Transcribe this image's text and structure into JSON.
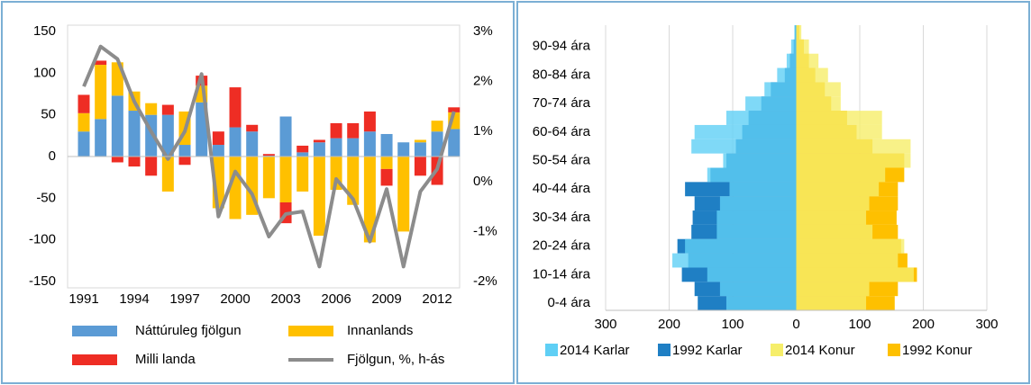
{
  "chart_data": [
    {
      "type": "bar",
      "categories": [
        "1991",
        null,
        null,
        "1994",
        null,
        null,
        "1997",
        null,
        null,
        "2000",
        null,
        null,
        "2003",
        null,
        null,
        "2006",
        null,
        null,
        "2009",
        null,
        null,
        "2012",
        null
      ],
      "series": [
        {
          "name": "Náttúruleg fjölgun",
          "color": "#5b9bd5",
          "type": "bar",
          "values": [
            30,
            45,
            73,
            55,
            50,
            50,
            14,
            65,
            14,
            35,
            30,
            1,
            48,
            5,
            17,
            22,
            22,
            30,
            27,
            17,
            17,
            30,
            33
          ]
        },
        {
          "name": "Innanlands",
          "color": "#ffc000",
          "type": "bar",
          "values": [
            22,
            65,
            40,
            23,
            14,
            -42,
            40,
            20,
            -62,
            -75,
            -70,
            -50,
            -55,
            -42,
            -95,
            -40,
            -58,
            -103,
            -15,
            -90,
            3,
            13,
            20
          ]
        },
        {
          "name": "Milli landa",
          "color": "#ee2d24",
          "type": "bar",
          "values": [
            22,
            5,
            -7,
            -12,
            -23,
            12,
            -10,
            12,
            16,
            48,
            8,
            2,
            -25,
            8,
            3,
            18,
            18,
            24,
            -20,
            0,
            -23,
            -34,
            6
          ]
        },
        {
          "name": "Fjölgun, %, h-ás",
          "color": "#8c8c8c",
          "type": "line",
          "axis": "y2",
          "values": [
            1.9,
            2.7,
            2.45,
            1.6,
            1.0,
            0.45,
            1.0,
            2.15,
            -0.7,
            0.2,
            -0.25,
            -1.1,
            -0.65,
            -0.6,
            -1.7,
            0.05,
            -0.35,
            -1.2,
            -0.15,
            -1.7,
            -0.2,
            0.25,
            1.4
          ]
        }
      ],
      "ylim": [
        -150,
        150
      ],
      "yticks": [
        -150,
        -100,
        -50,
        0,
        50,
        100,
        150
      ],
      "y2lim": [
        -2,
        3
      ],
      "y2ticks": [
        {
          "value": -2,
          "label": "-2%"
        },
        {
          "value": -1,
          "label": "-1%"
        },
        {
          "value": 0,
          "label": "0%"
        },
        {
          "value": 1,
          "label": "1%"
        },
        {
          "value": 2,
          "label": "2%"
        },
        {
          "value": 3,
          "label": "3%"
        }
      ],
      "grid": false
    },
    {
      "type": "barh",
      "categories": [
        "0-4 ára",
        null,
        "10-14 ára",
        null,
        "20-24 ára",
        null,
        "30-34 ára",
        null,
        "40-44 ára",
        null,
        "50-54 ára",
        null,
        "60-64 ára",
        null,
        "70-74 ára",
        null,
        "80-84 ára",
        null,
        "90-94 ára",
        null
      ],
      "series": [
        {
          "name": "2014 Karlar",
          "color": "#5fcff5",
          "values": [
            -110,
            -120,
            -140,
            -195,
            -175,
            -125,
            -125,
            -120,
            -105,
            -140,
            -115,
            -165,
            -160,
            -110,
            -80,
            -50,
            -30,
            -15,
            -8,
            -3
          ]
        },
        {
          "name": "1992 Karlar",
          "color": "#1f7fc4",
          "values": [
            -155,
            -160,
            -180,
            -170,
            -187,
            -165,
            -163,
            -160,
            -175,
            -135,
            -110,
            -95,
            -85,
            -75,
            -55,
            -40,
            -18,
            -10,
            -4,
            -2
          ]
        },
        {
          "name": "2014 Konur",
          "color": "#f6ee6a",
          "values": [
            110,
            115,
            185,
            160,
            170,
            120,
            110,
            115,
            130,
            140,
            180,
            180,
            135,
            135,
            70,
            70,
            50,
            35,
            20,
            8
          ]
        },
        {
          "name": "1992 Konur",
          "color": "#fec000",
          "values": [
            155,
            160,
            190,
            175,
            165,
            160,
            158,
            160,
            160,
            170,
            170,
            120,
            95,
            80,
            55,
            45,
            30,
            20,
            12,
            5
          ]
        }
      ],
      "xlim": [
        -300,
        300
      ],
      "xticks": [
        {
          "value": -300,
          "label": "300"
        },
        {
          "value": -200,
          "label": "200"
        },
        {
          "value": -100,
          "label": "100"
        },
        0,
        100,
        200,
        300
      ],
      "grid": true
    }
  ]
}
